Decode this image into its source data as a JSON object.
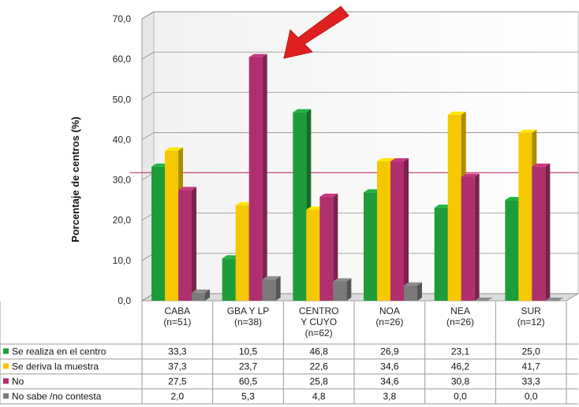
{
  "chart_data": {
    "type": "bar",
    "ylabel": "Porcentaje de centros (%)",
    "ylim": [
      0,
      70
    ],
    "yticks": [
      "0,0",
      "10,0",
      "20,0",
      "30,0",
      "40,0",
      "50,0",
      "60,0",
      "70,0"
    ],
    "categories": [
      [
        "CABA",
        "(n=51)"
      ],
      [
        "GBA Y LP",
        "(n=38)"
      ],
      [
        "CENTRO",
        "Y CUYO",
        "(n=62)"
      ],
      [
        "NOA",
        "(n=26)"
      ],
      [
        "NEA",
        "(n=26)"
      ],
      [
        "SUR",
        "(n=12)"
      ]
    ],
    "series": [
      {
        "name": "Se realiza en el centro",
        "color": "#1e9c3a",
        "values": [
          33.3,
          10.5,
          46.8,
          26.9,
          23.1,
          25.0
        ],
        "labels": [
          "33,3",
          "10,5",
          "46,8",
          "26,9",
          "23,1",
          "25,0"
        ]
      },
      {
        "name": "Se deriva la muestra",
        "color": "#f5c800",
        "values": [
          37.3,
          23.7,
          22.6,
          34.6,
          46.2,
          41.7
        ],
        "labels": [
          "37,3",
          "23,7",
          "22,6",
          "34,6",
          "46,2",
          "41,7"
        ]
      },
      {
        "name": "No",
        "color": "#b0306f",
        "values": [
          27.5,
          60.5,
          25.8,
          34.6,
          30.8,
          33.3
        ],
        "labels": [
          "27,5",
          "60,5",
          "25,8",
          "34,6",
          "30,8",
          "33,3"
        ]
      },
      {
        "name": "No sabe /no contesta",
        "color": "#7a7a7a",
        "values": [
          2.0,
          5.3,
          4.8,
          3.8,
          0.0,
          0.0
        ],
        "labels": [
          "2,0",
          "5,3",
          "4,8",
          "3,8",
          "0,0",
          "0,0"
        ]
      }
    ],
    "reference_line": {
      "value": 31.5,
      "color": "#c24a7a"
    },
    "annotation": {
      "type": "arrow",
      "color": "#e02020",
      "points_to": "GBA Y LP - No"
    },
    "grid": true,
    "legend": "table-below"
  }
}
